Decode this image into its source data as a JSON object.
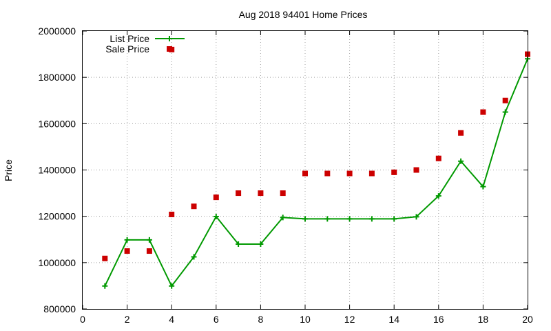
{
  "chart_data": {
    "type": "line",
    "title": "Aug 2018 94401 Home Prices",
    "xlabel": "",
    "ylabel": "Price",
    "xlim": [
      0,
      20
    ],
    "ylim": [
      800000,
      2000000
    ],
    "xticks": [
      0,
      2,
      4,
      6,
      8,
      10,
      12,
      14,
      16,
      18,
      20
    ],
    "yticks": [
      800000,
      1000000,
      1200000,
      1400000,
      1600000,
      1800000,
      2000000
    ],
    "grid": true,
    "legend_position": "top-left",
    "series": [
      {
        "name": "List Price",
        "style": "line-with-plus-markers",
        "color": "#009900",
        "x": [
          1,
          2,
          3,
          4,
          5,
          6,
          7,
          8,
          9,
          10,
          11,
          12,
          13,
          14,
          15,
          16,
          17,
          18,
          19,
          20
        ],
        "y": [
          899000,
          1098000,
          1098000,
          899000,
          1025000,
          1199000,
          1080000,
          1080000,
          1195000,
          1189000,
          1189000,
          1189000,
          1189000,
          1189000,
          1198000,
          1288000,
          1438000,
          1328000,
          1650000,
          1880000
        ]
      },
      {
        "name": "Sale Price",
        "style": "square-markers",
        "color": "#cc0000",
        "x": [
          1,
          2,
          3,
          4,
          4,
          5,
          6,
          7,
          8,
          9,
          10,
          11,
          12,
          13,
          14,
          15,
          16,
          17,
          18,
          19,
          20
        ],
        "y": [
          1018000,
          1050000,
          1050000,
          1920000,
          1208000,
          1243000,
          1282000,
          1300000,
          1300000,
          1300000,
          1385000,
          1385000,
          1385000,
          1385000,
          1390000,
          1400000,
          1450000,
          1560000,
          1650000,
          1700000,
          1900000
        ]
      }
    ]
  }
}
